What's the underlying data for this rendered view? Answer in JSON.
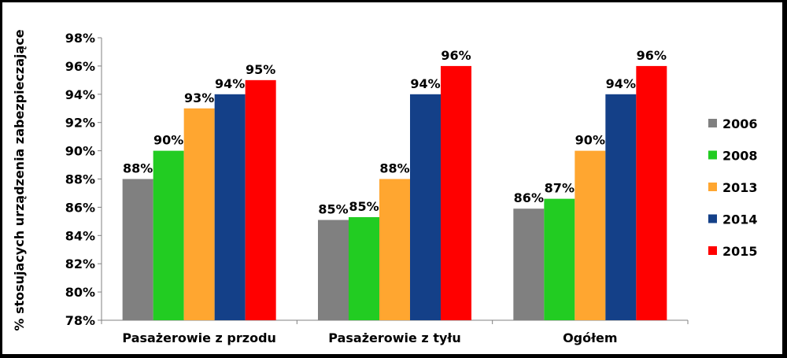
{
  "chart_data": {
    "type": "bar",
    "title": "",
    "xlabel": "",
    "ylabel": "% stosujacych urządzenia zabezpieczające",
    "ylim": [
      0.78,
      0.98
    ],
    "yticks": [
      0.78,
      0.8,
      0.82,
      0.84,
      0.86,
      0.88,
      0.9,
      0.92,
      0.94,
      0.96,
      0.98
    ],
    "ytick_labels": [
      "78%",
      "80%",
      "82%",
      "84%",
      "86%",
      "88%",
      "90%",
      "92%",
      "94%",
      "96%",
      "98%"
    ],
    "grid": false,
    "legend_position": "right",
    "categories": [
      "Pasażerowie z przodu",
      "Pasażerowie z tyłu",
      "Ogółem"
    ],
    "series": [
      {
        "name": "2006",
        "color": "#808080",
        "values": [
          0.88,
          0.851,
          0.859
        ],
        "labels": [
          "88%",
          "85%",
          "86%"
        ]
      },
      {
        "name": "2008",
        "color": "#22cc22",
        "values": [
          0.9,
          0.853,
          0.866
        ],
        "labels": [
          "90%",
          "85%",
          "87%"
        ]
      },
      {
        "name": "2013",
        "color": "#ffa630",
        "values": [
          0.93,
          0.88,
          0.9
        ],
        "labels": [
          "93%",
          "88%",
          "90%"
        ]
      },
      {
        "name": "2014",
        "color": "#144088",
        "values": [
          0.94,
          0.94,
          0.94
        ],
        "labels": [
          "94%",
          "94%",
          "94%"
        ]
      },
      {
        "name": "2015",
        "color": "#ff0000",
        "values": [
          0.95,
          0.96,
          0.96
        ],
        "labels": [
          "95%",
          "96%",
          "96%"
        ]
      }
    ]
  }
}
